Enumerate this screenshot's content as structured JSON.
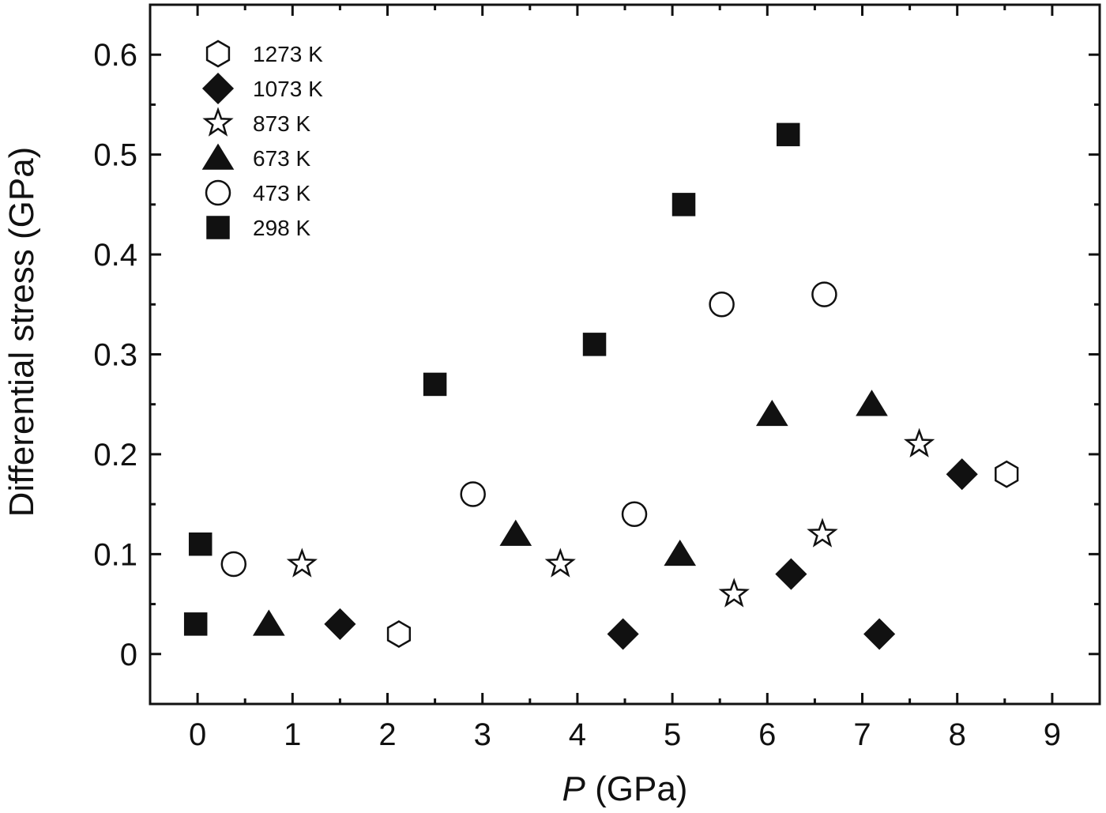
{
  "chart_data": {
    "type": "scatter",
    "xlabel_italic": "P",
    "xlabel_rest": " (GPa)",
    "ylabel": "Differential stress (GPa)",
    "xlim": [
      -0.5,
      9.5
    ],
    "ylim": [
      -0.05,
      0.65
    ],
    "xticks": [
      0,
      1,
      2,
      3,
      4,
      5,
      6,
      7,
      8,
      9
    ],
    "xtick_labels": [
      "0",
      "1",
      "2",
      "3",
      "4",
      "5",
      "6",
      "7",
      "8",
      "9"
    ],
    "yticks": [
      0,
      0.1,
      0.2,
      0.3,
      0.4,
      0.5,
      0.6
    ],
    "ytick_labels": [
      "0",
      "0.1",
      "0.2",
      "0.3",
      "0.4",
      "0.5",
      "0.6"
    ],
    "grid": false,
    "legend_position": "top-left",
    "marker_color": "#111111",
    "series": [
      {
        "name": "1273 K",
        "marker": "hexagon-open",
        "x": [
          2.12,
          8.52
        ],
        "y": [
          0.02,
          0.18
        ]
      },
      {
        "name": "1073 K",
        "marker": "diamond-filled",
        "x": [
          1.5,
          4.48,
          6.25,
          7.18,
          8.05
        ],
        "y": [
          0.03,
          0.02,
          0.08,
          0.02,
          0.18
        ]
      },
      {
        "name": "873 K",
        "marker": "star-open",
        "x": [
          1.1,
          3.82,
          5.65,
          6.58,
          7.6
        ],
        "y": [
          0.09,
          0.09,
          0.06,
          0.12,
          0.21
        ]
      },
      {
        "name": "673 K",
        "marker": "triangle-filled",
        "x": [
          0.75,
          3.35,
          5.08,
          6.05,
          7.1
        ],
        "y": [
          0.03,
          0.12,
          0.1,
          0.24,
          0.25
        ]
      },
      {
        "name": "473 K",
        "marker": "circle-open",
        "x": [
          0.38,
          2.9,
          4.6,
          5.52,
          6.6
        ],
        "y": [
          0.09,
          0.16,
          0.14,
          0.35,
          0.36
        ]
      },
      {
        "name": "298 K",
        "marker": "square-filled",
        "x": [
          -0.02,
          0.03,
          2.5,
          4.18,
          5.12,
          6.22
        ],
        "y": [
          0.03,
          0.11,
          0.27,
          0.31,
          0.45,
          0.52
        ]
      }
    ]
  }
}
